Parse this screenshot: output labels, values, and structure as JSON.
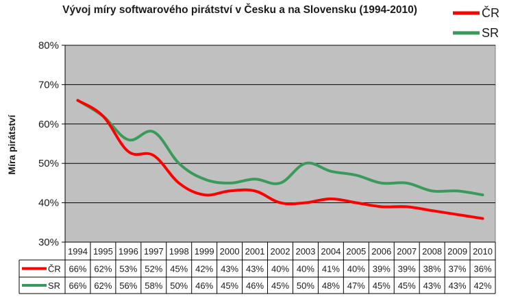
{
  "chart_data": {
    "type": "line",
    "title": "Vývoj míry softwarového pirátství v Česku a na Slovensku (1994-2010)",
    "ylabel": "Míra pirátství",
    "xlabel": "",
    "ylim": [
      30,
      80
    ],
    "yticks": [
      30,
      40,
      50,
      60,
      70,
      80
    ],
    "ytick_labels": [
      "30%",
      "40%",
      "50%",
      "60%",
      "70%",
      "80%"
    ],
    "grid": true,
    "legend_position": "top-right",
    "categories": [
      "1994",
      "1995",
      "1996",
      "1997",
      "1998",
      "1999",
      "2000",
      "2001",
      "2002",
      "2003",
      "2004",
      "2005",
      "2006",
      "2007",
      "2008",
      "2009",
      "2010"
    ],
    "series": [
      {
        "name": "ČR",
        "color": "#ff0000",
        "values": [
          66,
          62,
          53,
          52,
          45,
          42,
          43,
          43,
          40,
          40,
          41,
          40,
          39,
          39,
          38,
          37,
          36
        ],
        "labels": [
          "66%",
          "62%",
          "53%",
          "52%",
          "45%",
          "42%",
          "43%",
          "43%",
          "40%",
          "40%",
          "41%",
          "40%",
          "39%",
          "39%",
          "38%",
          "37%",
          "36%"
        ]
      },
      {
        "name": "SR",
        "color": "#3a9a5a",
        "values": [
          66,
          62,
          56,
          58,
          50,
          46,
          45,
          46,
          45,
          50,
          48,
          47,
          45,
          45,
          43,
          43,
          42
        ],
        "labels": [
          "66%",
          "62%",
          "56%",
          "58%",
          "50%",
          "46%",
          "45%",
          "46%",
          "45%",
          "50%",
          "48%",
          "47%",
          "45%",
          "45%",
          "43%",
          "43%",
          "42%"
        ]
      }
    ],
    "plot_background": "#c0c0c0"
  }
}
